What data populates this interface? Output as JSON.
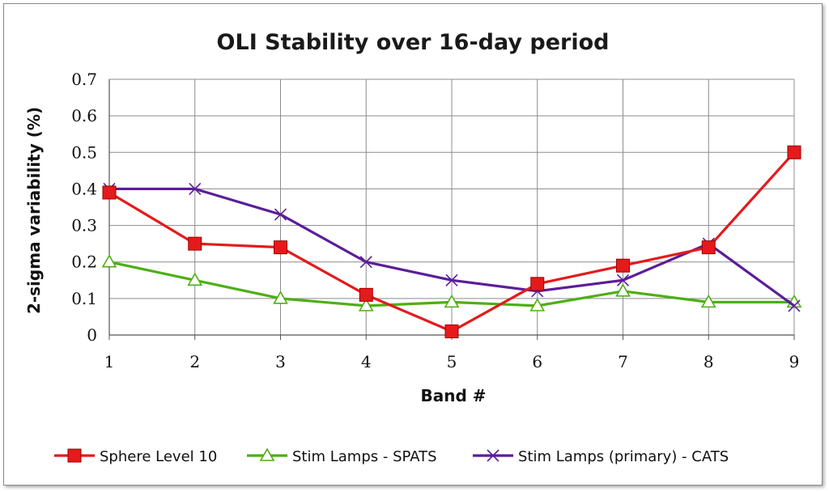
{
  "chart_data": {
    "type": "line",
    "title": "OLI Stability over 16-day period",
    "xlabel": "Band #",
    "ylabel": "2-sigma variability (%)",
    "categories": [
      "1",
      "2",
      "3",
      "4",
      "5",
      "6",
      "7",
      "8",
      "9"
    ],
    "y_ticks": [
      "0",
      "0.1",
      "0.2",
      "0.3",
      "0.4",
      "0.5",
      "0.6",
      "0.7"
    ],
    "ylim": [
      0,
      0.7
    ],
    "grid": true,
    "legend_position": "bottom",
    "series": [
      {
        "name": "Sphere Level 10",
        "color": "#e41a1c",
        "marker": "square",
        "values": [
          0.39,
          0.25,
          0.24,
          0.11,
          0.01,
          0.14,
          0.19,
          0.24,
          0.5
        ]
      },
      {
        "name": "Stim Lamps - SPATS",
        "color": "#4daf14",
        "marker": "triangle",
        "values": [
          0.2,
          0.15,
          0.1,
          0.08,
          0.09,
          0.08,
          0.12,
          0.09,
          0.09
        ]
      },
      {
        "name": "Stim Lamps (primary) - CATS",
        "color": "#5b1d99",
        "marker": "x",
        "values": [
          0.4,
          0.4,
          0.33,
          0.2,
          0.15,
          0.12,
          0.15,
          0.25,
          0.08
        ]
      }
    ]
  }
}
